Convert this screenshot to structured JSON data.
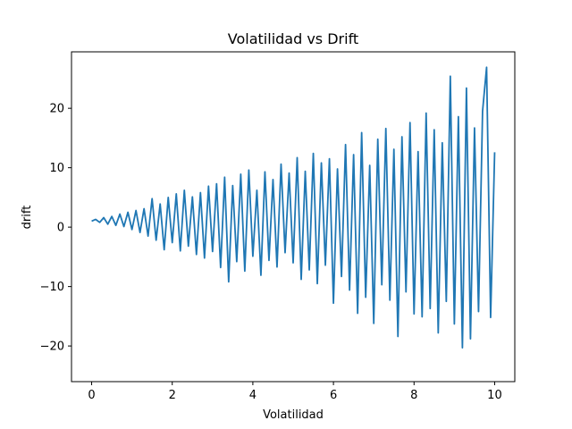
{
  "chart_data": {
    "type": "line",
    "title": "Volatilidad vs Drift",
    "xlabel": "Volatilidad",
    "ylabel": "drift",
    "xlim": [
      -0.5,
      10.5
    ],
    "ylim": [
      -26.0,
      29.5
    ],
    "xticks": [
      0,
      2,
      4,
      6,
      8,
      10
    ],
    "yticks": [
      -20,
      -10,
      0,
      10,
      20
    ],
    "grid": false,
    "legend": "none",
    "colors": {
      "line": "#1f77b4",
      "axes": "#000000",
      "background": "#ffffff"
    },
    "series": [
      {
        "x": [
          0.0,
          0.1,
          0.2,
          0.3,
          0.4,
          0.5,
          0.6,
          0.7,
          0.8,
          0.9,
          1.0,
          1.1,
          1.2,
          1.3,
          1.4,
          1.5,
          1.6,
          1.7,
          1.8,
          1.9,
          2.0,
          2.1,
          2.2,
          2.3,
          2.4,
          2.5,
          2.6,
          2.7,
          2.8,
          2.9,
          3.0,
          3.1,
          3.2,
          3.3,
          3.4,
          3.5,
          3.6,
          3.7,
          3.8,
          3.9,
          4.0,
          4.1,
          4.2,
          4.3,
          4.4,
          4.5,
          4.6,
          4.7,
          4.8,
          4.9,
          5.0,
          5.1,
          5.2,
          5.3,
          5.4,
          5.5,
          5.6,
          5.7,
          5.8,
          5.9,
          6.0,
          6.1,
          6.2,
          6.3,
          6.4,
          6.5,
          6.6,
          6.7,
          6.8,
          6.9,
          7.0,
          7.1,
          7.2,
          7.3,
          7.4,
          7.5,
          7.6,
          7.7,
          7.8,
          7.9,
          8.0,
          8.1,
          8.2,
          8.3,
          8.4,
          8.5,
          8.6,
          8.7,
          8.8,
          8.9,
          9.0,
          9.1,
          9.2,
          9.3,
          9.4,
          9.5,
          9.6,
          9.7,
          9.8,
          9.9,
          10.0
        ],
        "values": [
          1.0,
          1.3,
          0.8,
          1.6,
          0.5,
          1.8,
          0.3,
          2.2,
          0.1,
          2.5,
          -0.4,
          2.8,
          -0.9,
          3.1,
          -1.5,
          4.8,
          -2.2,
          3.9,
          -3.8,
          5.0,
          -2.6,
          5.6,
          -4.0,
          6.2,
          -3.2,
          5.1,
          -4.6,
          5.8,
          -5.2,
          6.9,
          -4.1,
          7.3,
          -6.8,
          8.4,
          -9.2,
          7.0,
          -5.8,
          8.9,
          -7.4,
          9.6,
          -4.9,
          6.2,
          -8.1,
          9.3,
          -5.6,
          8.0,
          -6.7,
          10.6,
          -4.3,
          9.1,
          -6.0,
          11.7,
          -8.8,
          9.4,
          -7.2,
          12.4,
          -9.5,
          10.8,
          -6.4,
          11.5,
          -12.8,
          9.8,
          -8.3,
          13.9,
          -10.6,
          12.2,
          -14.5,
          15.9,
          -11.8,
          10.4,
          -16.2,
          14.8,
          -9.7,
          16.6,
          -12.3,
          13.1,
          -18.4,
          15.2,
          -10.9,
          17.6,
          -14.6,
          12.7,
          -15.1,
          19.2,
          -13.7,
          16.4,
          -17.8,
          14.2,
          -12.5,
          25.4,
          -16.3,
          18.6,
          -20.3,
          23.4,
          -18.8,
          16.7,
          -14.2,
          19.5,
          26.9,
          -15.2,
          12.6
        ]
      }
    ]
  }
}
